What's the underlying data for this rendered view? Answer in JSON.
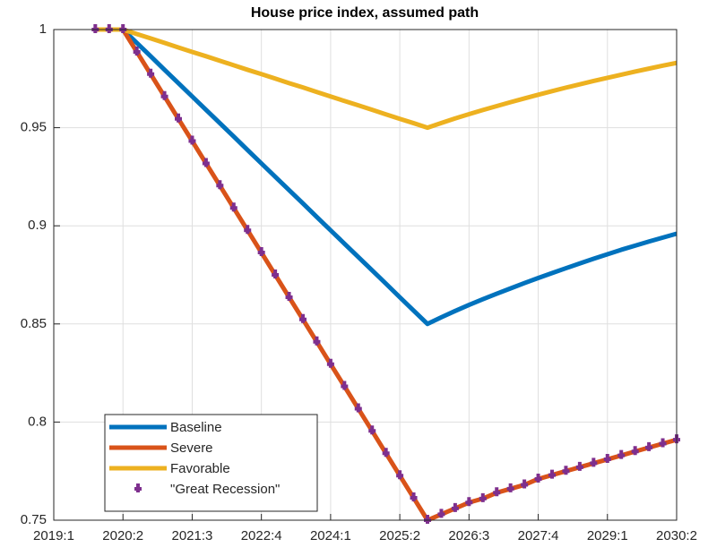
{
  "chart_data": {
    "type": "line",
    "title": "House price index, assumed path",
    "categories": [
      "2019:1",
      null,
      null,
      null,
      null,
      "2020:2",
      null,
      null,
      null,
      null,
      "2021:3",
      null,
      null,
      null,
      null,
      "2022:4",
      null,
      null,
      null,
      null,
      "2024:1",
      null,
      null,
      null,
      null,
      "2025:2",
      null,
      null,
      null,
      null,
      "2026:3",
      null,
      null,
      null,
      null,
      "2027:4",
      null,
      null,
      null,
      null,
      "2029:1",
      null,
      null,
      null,
      null,
      "2030:2"
    ],
    "series": [
      {
        "name": "Baseline",
        "color": "#0072BD",
        "line": true,
        "marker": false,
        "values": [
          null,
          null,
          null,
          1,
          1,
          1,
          0.9932,
          0.9864,
          0.9795,
          0.9727,
          0.9659,
          0.9591,
          0.9523,
          0.9455,
          0.9386,
          0.9318,
          0.925,
          0.9182,
          0.9114,
          0.9045,
          0.8977,
          0.8909,
          0.8841,
          0.8773,
          0.8705,
          0.8636,
          0.8568,
          0.85,
          0.8534,
          0.8566,
          0.8597,
          0.8626,
          0.8654,
          0.8681,
          0.8708,
          0.8734,
          0.8759,
          0.8784,
          0.8808,
          0.8832,
          0.8855,
          0.8878,
          0.8899,
          0.892,
          0.894,
          0.896
        ]
      },
      {
        "name": "Severe",
        "color": "#D95319",
        "line": true,
        "marker": false,
        "values": [
          null,
          null,
          null,
          1,
          1,
          1,
          0.9886,
          0.9773,
          0.9659,
          0.9545,
          0.9432,
          0.9318,
          0.9205,
          0.9091,
          0.8977,
          0.8864,
          0.875,
          0.8636,
          0.8523,
          0.8409,
          0.8295,
          0.8182,
          0.8068,
          0.7955,
          0.7841,
          0.7727,
          0.7614,
          0.75,
          0.753,
          0.756,
          0.759,
          0.761,
          0.764,
          0.766,
          0.768,
          0.771,
          0.773,
          0.775,
          0.777,
          0.779,
          0.781,
          0.783,
          0.785,
          0.787,
          0.789,
          0.791
        ]
      },
      {
        "name": "Favorable",
        "color": "#EDB120",
        "line": true,
        "marker": false,
        "values": [
          null,
          null,
          null,
          1,
          1,
          1,
          0.9977,
          0.9955,
          0.9932,
          0.9909,
          0.9886,
          0.9864,
          0.9841,
          0.9818,
          0.9795,
          0.9773,
          0.975,
          0.9727,
          0.9705,
          0.9682,
          0.9659,
          0.9636,
          0.9614,
          0.9591,
          0.9568,
          0.9545,
          0.9523,
          0.95,
          0.9524,
          0.9547,
          0.9569,
          0.959,
          0.961,
          0.963,
          0.9649,
          0.9668,
          0.9686,
          0.9704,
          0.9721,
          0.9738,
          0.9754,
          0.977,
          0.9786,
          0.9801,
          0.9816,
          0.983
        ]
      },
      {
        "name": "\"Great Recession\"",
        "color": "#7E2F8E",
        "line": false,
        "marker": true,
        "values": [
          null,
          null,
          null,
          1,
          1,
          1,
          0.9886,
          0.9773,
          0.9659,
          0.9545,
          0.9432,
          0.9318,
          0.9205,
          0.9091,
          0.8977,
          0.8864,
          0.875,
          0.8636,
          0.8523,
          0.8409,
          0.8295,
          0.8182,
          0.8068,
          0.7955,
          0.7841,
          0.7727,
          0.7614,
          0.75,
          0.753,
          0.756,
          0.759,
          0.761,
          0.764,
          0.766,
          0.768,
          0.771,
          0.773,
          0.775,
          0.777,
          0.779,
          0.781,
          0.783,
          0.785,
          0.787,
          0.789,
          0.791
        ]
      }
    ],
    "ylim": [
      0.75,
      1
    ],
    "yticks": [
      0.75,
      0.8,
      0.85,
      0.9,
      0.95,
      1
    ],
    "grid": true,
    "legend": "lower left"
  }
}
